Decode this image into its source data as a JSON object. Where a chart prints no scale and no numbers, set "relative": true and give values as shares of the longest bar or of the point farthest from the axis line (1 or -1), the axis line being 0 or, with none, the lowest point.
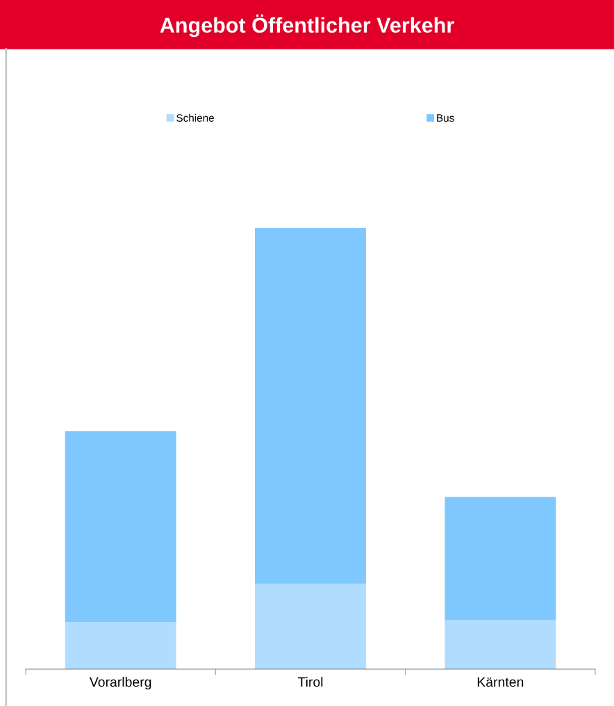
{
  "chart_data": {
    "type": "bar",
    "title": "Angebot Öffentlicher Verkehr",
    "relative": true,
    "stacked": true,
    "legend": "top",
    "categories": [
      "Vorarlberg",
      "Tirol",
      "Kärnten"
    ],
    "series": [
      {
        "name": "Schiene",
        "color": "#b0dcff",
        "values": [
          0.107,
          0.194,
          0.112
        ]
      },
      {
        "name": "Bus",
        "color": "#7fc8ff",
        "values": [
          0.432,
          0.806,
          0.278
        ]
      }
    ]
  }
}
